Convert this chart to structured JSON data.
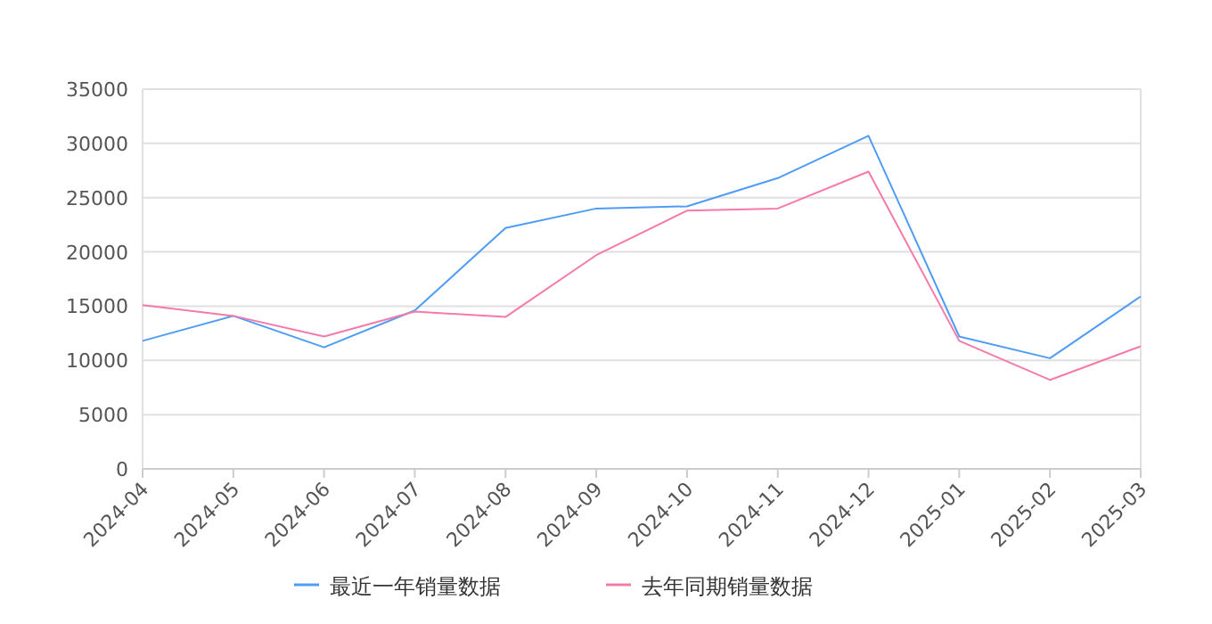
{
  "chart_data": {
    "type": "line",
    "categories": [
      "2024-04",
      "2024-05",
      "2024-06",
      "2024-07",
      "2024-08",
      "2024-09",
      "2024-10",
      "2024-11",
      "2024-12",
      "2025-01",
      "2025-02",
      "2025-03"
    ],
    "series": [
      {
        "name": "最近一年销量数据",
        "color": "#4e9cf5",
        "values": [
          11800,
          14100,
          11200,
          14600,
          22200,
          24000,
          24200,
          26800,
          30700,
          12200,
          10200,
          15900
        ]
      },
      {
        "name": "去年同期销量数据",
        "color": "#f57aa8",
        "values": [
          15100,
          14100,
          12200,
          14500,
          14000,
          19700,
          23800,
          24000,
          27400,
          11800,
          8200,
          11300
        ]
      }
    ],
    "ylim": [
      0,
      35000
    ],
    "yticks": [
      0,
      5000,
      10000,
      15000,
      20000,
      25000,
      30000,
      35000
    ],
    "grid": "y",
    "legend": "bottom",
    "marker": "none",
    "line_style": "solid"
  }
}
